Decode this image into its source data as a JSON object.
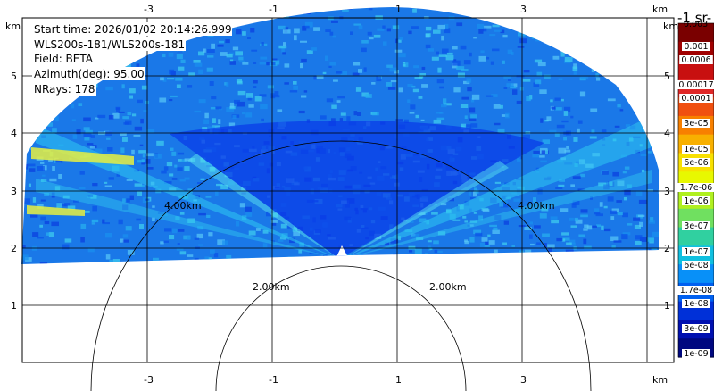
{
  "info": {
    "start_time": "Start time: 2026/01/02 20:14:26.999",
    "instrument": "WLS200s-181/WLS200s-181",
    "field": "Field: BETA",
    "azimuth": "Azimuth(deg): 95.00",
    "nrays": "NRays: 178"
  },
  "axes": {
    "x_ticks": [
      "-3",
      "-1",
      "1",
      "3"
    ],
    "y_ticks": [
      "1",
      "2",
      "3",
      "4",
      "5"
    ],
    "unit": "km"
  },
  "range_rings": [
    "2.00km",
    "2.00km",
    "4.00km",
    "4.00km"
  ],
  "colorbar": {
    "units_label": "-1 sr-",
    "top_label": "0.003",
    "labels": [
      "0.001",
      "0.0006",
      "0.00017",
      "0.0001",
      "3e-05",
      "1e-05",
      "6e-06",
      "1.7e-06",
      "1e-06",
      "3e-07",
      "1e-07",
      "6e-08",
      "1.7e-08",
      "1e-08",
      "3e-09",
      "1e-09"
    ],
    "colors": [
      "#7a0000",
      "#a00000",
      "#c81010",
      "#e02828",
      "#f05010",
      "#f88000",
      "#f8b000",
      "#f8e000",
      "#e8f800",
      "#b0f020",
      "#70e060",
      "#30d0a0",
      "#10c0e0",
      "#0890f8",
      "#0060f0",
      "#0030d8",
      "#0010b0",
      "#000880"
    ]
  },
  "colors": {
    "background_scan": "#1a78e8",
    "dense_low": "#0a3ce8",
    "beam": "#30c8f0",
    "bright": "#e8f040"
  }
}
